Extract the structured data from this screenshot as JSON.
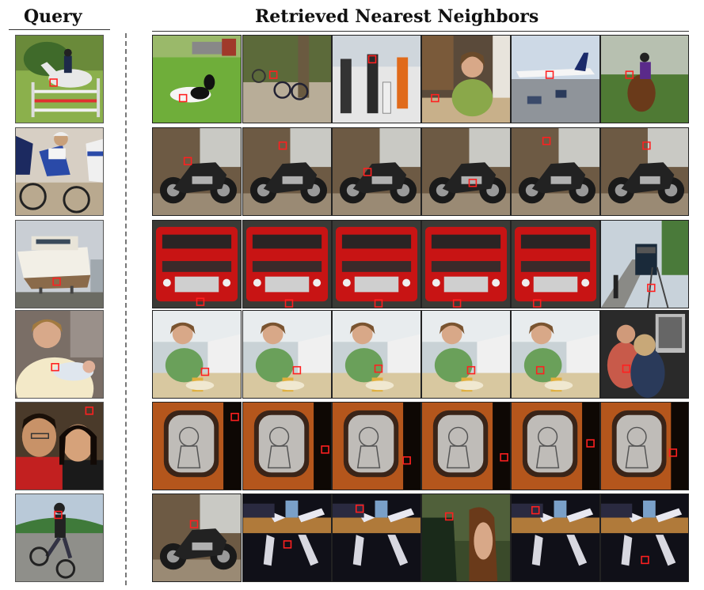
{
  "header": {
    "query_title": "Query",
    "retrieved_title": "Retrieved  Nearest Neighbors"
  },
  "colors": {
    "marker": "#ff2020",
    "grass": "#6fae3a",
    "bus_red": "#c81414",
    "tv_orange": "#b4561c",
    "dark_bg": "#1a1a2a"
  },
  "rows": [
    {
      "query": "horse-jumper",
      "neighbors": [
        "cow-on-grass",
        "bicycles-path",
        "harbor-people",
        "woman-at-table",
        "airplane-airport",
        "horse-rider-field"
      ]
    },
    {
      "query": "cyclists-race",
      "neighbors": [
        "motorcycle",
        "motorcycle",
        "motorcycle",
        "motorcycle",
        "motorcycle",
        "motorcycle"
      ]
    },
    {
      "query": "boat-on-stand",
      "neighbors": [
        "red-bus",
        "red-bus",
        "red-bus",
        "red-bus",
        "red-bus",
        "train-platform"
      ]
    },
    {
      "query": "woman-holding-baby",
      "neighbors": [
        "woman-eating",
        "woman-eating",
        "woman-eating",
        "woman-eating",
        "woman-eating",
        "people-at-computer"
      ]
    },
    {
      "query": "two-people-smiling",
      "neighbors": [
        "tv-cartoon",
        "tv-cartoon",
        "tv-cartoon",
        "tv-cartoon",
        "tv-cartoon",
        "tv-cartoon"
      ]
    },
    {
      "query": "bmx-rider",
      "neighbors": [
        "motorcycle",
        "robot-toy-table",
        "robot-toy-table",
        "woman-by-water",
        "robot-toy-table",
        "robot-toy-table"
      ]
    }
  ]
}
